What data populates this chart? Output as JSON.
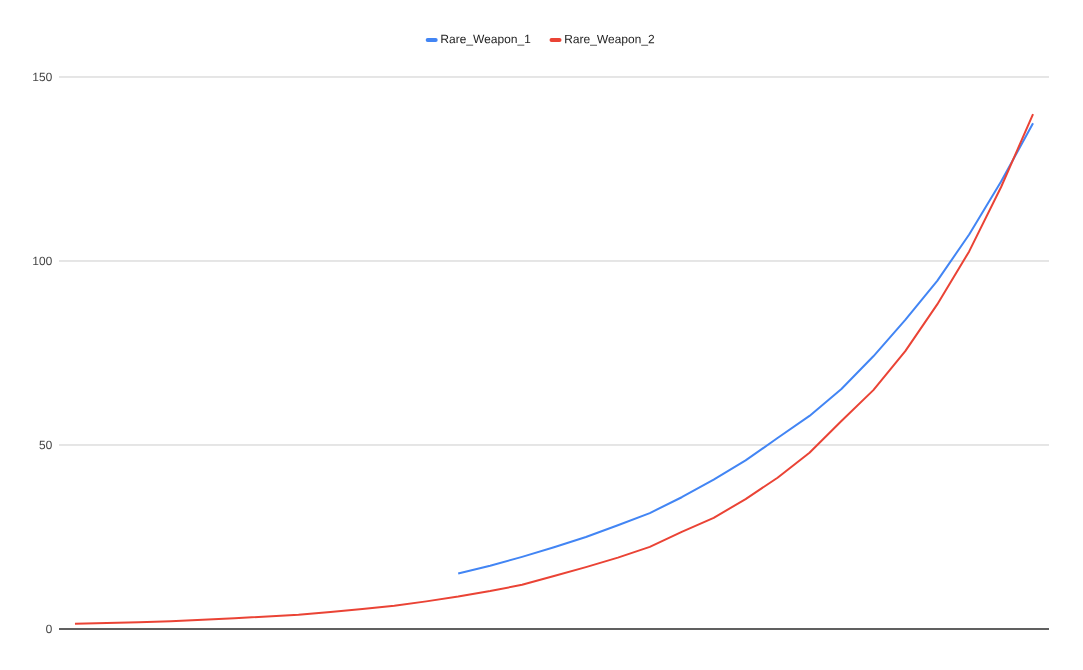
{
  "chart_data": {
    "type": "line",
    "categories": [
      null,
      null,
      null,
      null,
      null,
      null,
      null,
      null,
      null,
      null,
      null,
      null,
      null,
      null,
      null,
      null,
      null,
      null,
      null,
      null,
      null,
      null,
      null,
      null,
      null,
      null,
      null,
      null,
      null,
      null,
      null
    ],
    "series": [
      {
        "name": "Rare_Weapon_1",
        "color": "#4285f4",
        "values": [
          null,
          null,
          null,
          null,
          null,
          null,
          null,
          null,
          null,
          null,
          null,
          null,
          15.1,
          17.2,
          19.6,
          22.2,
          25.0,
          28.2,
          31.5,
          35.8,
          40.6,
          45.8,
          51.9,
          57.9,
          65.2,
          74.1,
          84.0,
          94.6,
          107.2,
          121.6,
          137.4
        ]
      },
      {
        "name": "Rare_Weapon_2",
        "color": "#ea4335",
        "values": [
          1.4,
          1.6,
          1.8,
          2.1,
          2.5,
          2.9,
          3.4,
          3.9,
          4.6,
          5.4,
          6.3,
          7.5,
          8.8,
          10.3,
          12.0,
          14.4,
          16.8,
          19.4,
          22.3,
          26.4,
          30.2,
          35.3,
          41.1,
          47.9,
          56.5,
          64.9,
          75.5,
          88.2,
          102.6,
          120.1,
          139.9
        ]
      }
    ],
    "ylim": [
      0,
      150
    ],
    "yticks": [
      0,
      50,
      100,
      150
    ],
    "grid": "y",
    "legend": "top"
  }
}
